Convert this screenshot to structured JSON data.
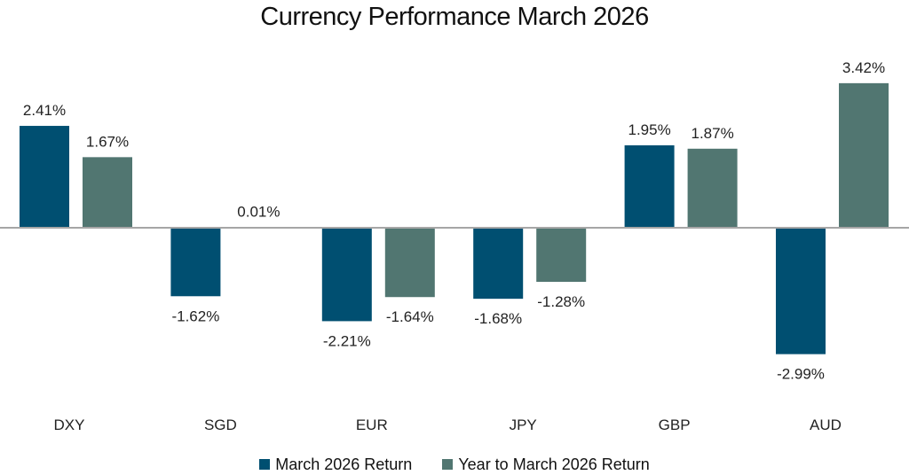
{
  "chart_data": {
    "type": "bar",
    "title": "Currency Performance March 2026",
    "xlabel": "",
    "ylabel": "",
    "categories": [
      "DXY",
      "SGD",
      "EUR",
      "JPY",
      "GBP",
      "AUD"
    ],
    "series": [
      {
        "name": "March 2026 Return",
        "color": "#004F71",
        "values": [
          2.41,
          -1.62,
          -2.21,
          -1.68,
          1.95,
          -2.99
        ],
        "labels": [
          "2.41%",
          "-1.62%",
          "-2.21%",
          "-1.68%",
          "1.95%",
          "-2.99%"
        ]
      },
      {
        "name": "Year to March 2026 Return",
        "color": "#517671",
        "values": [
          1.67,
          0.01,
          -1.64,
          -1.28,
          1.87,
          3.42
        ],
        "labels": [
          "1.67%",
          "0.01%",
          "-1.64%",
          "-1.28%",
          "1.87%",
          "3.42%"
        ]
      }
    ],
    "ylim": [
      -3.5,
      4.0
    ],
    "grid": false,
    "zero_line_color": "#A6A6A6",
    "legend_position": "bottom",
    "data_labels": true
  }
}
